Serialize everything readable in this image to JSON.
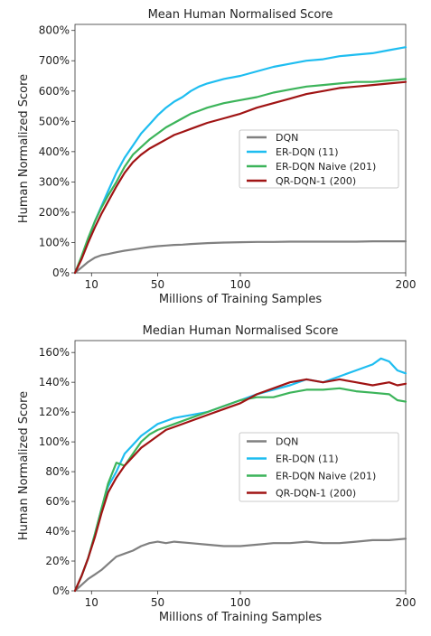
{
  "chart_data": [
    {
      "type": "line",
      "title": "Mean Human Normalised Score",
      "xlabel": "Millions of Training Samples",
      "ylabel": "Human Normalized Score",
      "xlim": [
        0,
        200
      ],
      "ylim": [
        0,
        820
      ],
      "xticks": [
        10,
        50,
        100,
        200
      ],
      "yticks": [
        0,
        100,
        200,
        300,
        400,
        500,
        600,
        700,
        800
      ],
      "ytick_labels": [
        "0%",
        "100%",
        "200%",
        "300%",
        "400%",
        "500%",
        "600%",
        "700%",
        "800%"
      ],
      "legend_position": "center-right",
      "grid": false,
      "series": [
        {
          "name": "DQN",
          "color": "#808080",
          "x": [
            0,
            4,
            8,
            12,
            16,
            20,
            25,
            30,
            35,
            40,
            45,
            50,
            55,
            60,
            65,
            70,
            80,
            90,
            100,
            110,
            120,
            130,
            140,
            150,
            160,
            170,
            180,
            190,
            200
          ],
          "y": [
            0,
            18,
            36,
            50,
            58,
            62,
            68,
            73,
            77,
            81,
            85,
            88,
            90,
            92,
            93,
            95,
            98,
            100,
            101,
            102,
            102,
            103,
            103,
            103,
            103,
            103,
            104,
            104,
            104
          ]
        },
        {
          "name": "ER-DQN (11)",
          "color": "#1ebdf0",
          "x": [
            0,
            4,
            8,
            12,
            16,
            20,
            25,
            30,
            35,
            40,
            45,
            50,
            55,
            60,
            65,
            70,
            75,
            80,
            90,
            100,
            110,
            120,
            130,
            140,
            150,
            160,
            170,
            180,
            190,
            200
          ],
          "y": [
            0,
            50,
            110,
            170,
            220,
            270,
            330,
            380,
            420,
            460,
            490,
            520,
            545,
            565,
            580,
            600,
            615,
            625,
            640,
            650,
            665,
            680,
            690,
            700,
            705,
            715,
            720,
            725,
            735,
            745
          ]
        },
        {
          "name": "ER-DQN Naive (201)",
          "color": "#3cb45a",
          "x": [
            0,
            4,
            8,
            12,
            16,
            20,
            25,
            30,
            35,
            40,
            45,
            50,
            55,
            60,
            65,
            70,
            75,
            80,
            90,
            100,
            110,
            120,
            130,
            140,
            150,
            160,
            170,
            180,
            190,
            200
          ],
          "y": [
            0,
            55,
            115,
            170,
            215,
            255,
            300,
            350,
            390,
            415,
            440,
            460,
            480,
            495,
            510,
            525,
            535,
            545,
            560,
            570,
            580,
            595,
            605,
            615,
            620,
            625,
            630,
            630,
            635,
            640
          ]
        },
        {
          "name": "QR-DQN-1 (200)",
          "color": "#a01414",
          "x": [
            0,
            4,
            8,
            12,
            16,
            20,
            25,
            30,
            35,
            40,
            45,
            50,
            55,
            60,
            65,
            70,
            75,
            80,
            90,
            100,
            110,
            120,
            130,
            140,
            150,
            160,
            170,
            180,
            190,
            200
          ],
          "y": [
            0,
            45,
            100,
            150,
            195,
            235,
            285,
            330,
            365,
            390,
            410,
            425,
            440,
            455,
            465,
            475,
            485,
            495,
            510,
            525,
            545,
            560,
            575,
            590,
            600,
            610,
            615,
            620,
            625,
            630
          ]
        }
      ]
    },
    {
      "type": "line",
      "title": "Median Human Normalised Score",
      "xlabel": "Millions of Training Samples",
      "ylabel": "Human Normalized Score",
      "xlim": [
        0,
        200
      ],
      "ylim": [
        0,
        168
      ],
      "xticks": [
        10,
        50,
        100,
        200
      ],
      "yticks": [
        0,
        20,
        40,
        60,
        80,
        100,
        120,
        140,
        160
      ],
      "ytick_labels": [
        "0%",
        "20%",
        "40%",
        "60%",
        "80%",
        "100%",
        "120%",
        "140%",
        "160%"
      ],
      "legend_position": "center-right",
      "grid": false,
      "series": [
        {
          "name": "DQN",
          "color": "#808080",
          "x": [
            0,
            4,
            8,
            12,
            16,
            20,
            25,
            30,
            35,
            40,
            45,
            50,
            55,
            60,
            70,
            80,
            90,
            100,
            110,
            120,
            130,
            140,
            150,
            160,
            170,
            180,
            190,
            200
          ],
          "y": [
            0,
            4,
            8,
            11,
            14,
            18,
            23,
            25,
            27,
            30,
            32,
            33,
            32,
            33,
            32,
            31,
            30,
            30,
            31,
            32,
            32,
            33,
            32,
            32,
            33,
            34,
            34,
            35
          ]
        },
        {
          "name": "ER-DQN (11)",
          "color": "#1ebdf0",
          "x": [
            0,
            4,
            8,
            12,
            16,
            20,
            25,
            30,
            35,
            40,
            45,
            50,
            55,
            60,
            70,
            80,
            90,
            100,
            110,
            120,
            130,
            140,
            150,
            160,
            170,
            180,
            185,
            190,
            195,
            200
          ],
          "y": [
            0,
            10,
            22,
            38,
            55,
            70,
            80,
            92,
            98,
            104,
            108,
            112,
            114,
            116,
            118,
            120,
            124,
            128,
            132,
            135,
            138,
            142,
            140,
            144,
            148,
            152,
            156,
            154,
            148,
            146
          ]
        },
        {
          "name": "ER-DQN Naive (201)",
          "color": "#3cb45a",
          "x": [
            0,
            4,
            8,
            12,
            16,
            20,
            25,
            30,
            35,
            40,
            45,
            50,
            55,
            60,
            70,
            80,
            90,
            100,
            110,
            120,
            130,
            140,
            150,
            160,
            170,
            180,
            190,
            195,
            200
          ],
          "y": [
            0,
            10,
            22,
            38,
            55,
            72,
            86,
            84,
            92,
            100,
            105,
            108,
            110,
            112,
            116,
            120,
            124,
            128,
            130,
            130,
            133,
            135,
            135,
            136,
            134,
            133,
            132,
            128,
            127
          ]
        },
        {
          "name": "QR-DQN-1 (200)",
          "color": "#a01414",
          "x": [
            0,
            4,
            8,
            12,
            16,
            20,
            25,
            30,
            35,
            40,
            45,
            50,
            55,
            60,
            70,
            80,
            90,
            100,
            110,
            120,
            130,
            140,
            150,
            160,
            170,
            180,
            190,
            195,
            200
          ],
          "y": [
            0,
            10,
            22,
            36,
            52,
            66,
            76,
            84,
            90,
            96,
            100,
            104,
            108,
            110,
            114,
            118,
            122,
            126,
            132,
            136,
            140,
            142,
            140,
            142,
            140,
            138,
            140,
            138,
            139
          ]
        }
      ]
    }
  ]
}
